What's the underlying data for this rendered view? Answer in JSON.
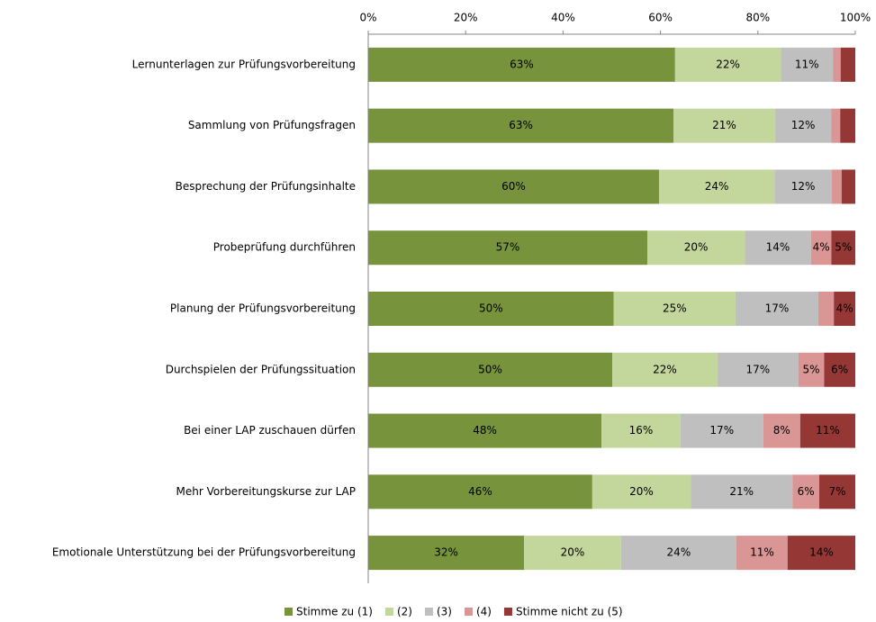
{
  "chart_data": {
    "type": "stacked_barh",
    "categories": [
      "Lernunterlagen zur Prüfungsvorbereitung",
      "Sammlung von Prüfungsfragen",
      "Besprechung der Prüfungsinhalte",
      "Probeprüfung durchführen",
      "Planung der Prüfungsvorbereitung",
      "Durchspielen der Prüfungssituation",
      "Bei einer LAP zuschauen dürfen",
      "Mehr Vorbereitungskurse zur LAP",
      "Emotionale Unterstützung bei der Prüfungsvorbereitung"
    ],
    "series": [
      {
        "name": "Stimme zu (1)",
        "color": "#77933c",
        "values": [
          63.0,
          62.7,
          59.7,
          57.3,
          50.4,
          50.1,
          47.9,
          46.0,
          32.0
        ],
        "value_labels": [
          "63%",
          "63%",
          "60%",
          "57%",
          "50%",
          "50%",
          "48%",
          "46%",
          "32%"
        ]
      },
      {
        "name": "(2)",
        "color": "#c3d69b",
        "values": [
          21.7,
          20.8,
          23.7,
          20.0,
          25.0,
          21.6,
          16.2,
          20.2,
          19.9
        ],
        "value_labels": [
          "22%",
          "21%",
          "24%",
          "20%",
          "25%",
          "22%",
          "16%",
          "20%",
          "20%"
        ]
      },
      {
        "name": "(3)",
        "color": "#bfbfbf",
        "values": [
          10.7,
          11.6,
          11.8,
          13.6,
          17.0,
          16.6,
          17.0,
          20.9,
          23.7
        ],
        "value_labels": [
          "11%",
          "12%",
          "12%",
          "14%",
          "17%",
          "17%",
          "17%",
          "21%",
          "24%"
        ]
      },
      {
        "name": "(4)",
        "color": "#d99694",
        "values": [
          1.6,
          1.8,
          2.0,
          4.2,
          3.2,
          5.3,
          7.6,
          5.5,
          10.5
        ],
        "value_labels": [
          null,
          null,
          null,
          "4%",
          null,
          "5%",
          "8%",
          "6%",
          "11%"
        ]
      },
      {
        "name": "Stimme nicht zu (5)",
        "color": "#953735",
        "values": [
          3.0,
          3.1,
          2.8,
          4.9,
          4.4,
          6.4,
          11.3,
          7.4,
          13.9
        ],
        "value_labels": [
          null,
          null,
          null,
          "5%",
          "4%",
          "6%",
          "11%",
          "7%",
          "14%"
        ]
      }
    ],
    "xlim": [
      0,
      100
    ],
    "xticks": [
      {
        "value": 0,
        "label": "0%"
      },
      {
        "value": 20,
        "label": "20%"
      },
      {
        "value": 40,
        "label": "40%"
      },
      {
        "value": 60,
        "label": "60%"
      },
      {
        "value": 80,
        "label": "80%"
      },
      {
        "value": 100,
        "label": "100%"
      }
    ]
  }
}
